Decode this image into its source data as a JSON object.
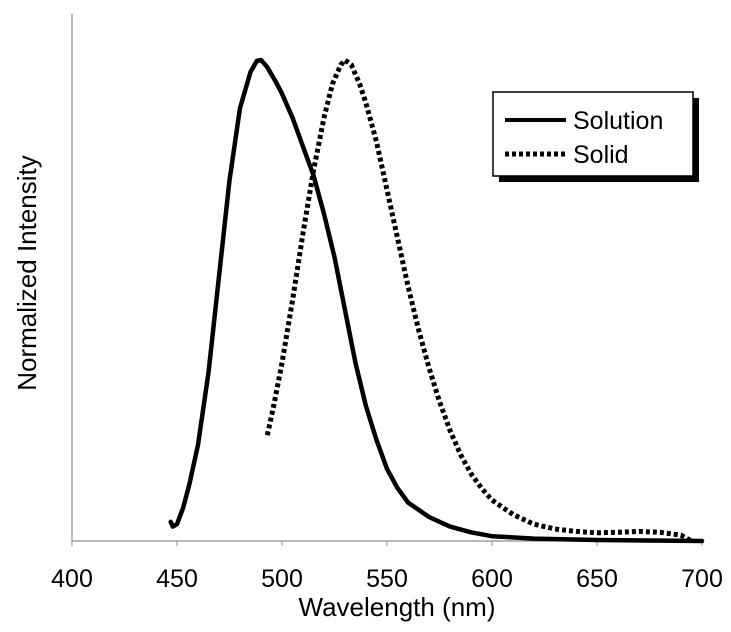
{
  "chart_data": {
    "type": "line",
    "title": "",
    "xlabel": "Wavelength (nm)",
    "ylabel": "Normalized Intensity",
    "xlim": [
      400,
      700
    ],
    "ylim": [
      0,
      1
    ],
    "x_ticks": [
      "400",
      "450",
      "500",
      "550",
      "600",
      "650",
      "700"
    ],
    "y_ticks": [],
    "grid": false,
    "legend_position": "top-right",
    "series": [
      {
        "name": "Solution",
        "style": "solid",
        "color": "#000000",
        "points": [
          [
            447,
            0.04
          ],
          [
            448,
            0.03
          ],
          [
            450,
            0.035
          ],
          [
            453,
            0.07
          ],
          [
            456,
            0.12
          ],
          [
            460,
            0.2
          ],
          [
            465,
            0.35
          ],
          [
            470,
            0.55
          ],
          [
            475,
            0.75
          ],
          [
            480,
            0.9
          ],
          [
            485,
            0.975
          ],
          [
            488,
            0.998
          ],
          [
            490,
            1.0
          ],
          [
            493,
            0.985
          ],
          [
            497,
            0.955
          ],
          [
            500,
            0.93
          ],
          [
            505,
            0.88
          ],
          [
            510,
            0.82
          ],
          [
            515,
            0.76
          ],
          [
            520,
            0.68
          ],
          [
            525,
            0.59
          ],
          [
            530,
            0.48
          ],
          [
            535,
            0.37
          ],
          [
            540,
            0.28
          ],
          [
            545,
            0.21
          ],
          [
            550,
            0.15
          ],
          [
            555,
            0.11
          ],
          [
            560,
            0.08
          ],
          [
            570,
            0.05
          ],
          [
            580,
            0.03
          ],
          [
            590,
            0.018
          ],
          [
            600,
            0.01
          ],
          [
            620,
            0.005
          ],
          [
            650,
            0.002
          ],
          [
            700,
            0.0
          ]
        ]
      },
      {
        "name": "Solid",
        "style": "dotted",
        "color": "#000000",
        "points": [
          [
            493,
            0.22
          ],
          [
            496,
            0.28
          ],
          [
            500,
            0.37
          ],
          [
            505,
            0.5
          ],
          [
            510,
            0.64
          ],
          [
            515,
            0.77
          ],
          [
            520,
            0.88
          ],
          [
            524,
            0.95
          ],
          [
            528,
            0.99
          ],
          [
            530,
            1.0
          ],
          [
            533,
            0.99
          ],
          [
            537,
            0.95
          ],
          [
            540,
            0.91
          ],
          [
            545,
            0.83
          ],
          [
            550,
            0.73
          ],
          [
            555,
            0.63
          ],
          [
            560,
            0.53
          ],
          [
            565,
            0.44
          ],
          [
            570,
            0.36
          ],
          [
            575,
            0.29
          ],
          [
            580,
            0.23
          ],
          [
            585,
            0.18
          ],
          [
            590,
            0.14
          ],
          [
            595,
            0.11
          ],
          [
            600,
            0.085
          ],
          [
            610,
            0.055
          ],
          [
            620,
            0.035
          ],
          [
            630,
            0.025
          ],
          [
            640,
            0.02
          ],
          [
            650,
            0.017
          ],
          [
            660,
            0.018
          ],
          [
            670,
            0.02
          ],
          [
            680,
            0.018
          ],
          [
            690,
            0.012
          ],
          [
            695,
            0.0
          ]
        ]
      }
    ]
  }
}
